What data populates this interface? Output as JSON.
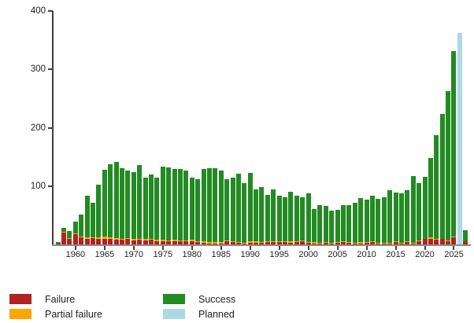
{
  "chart_data": {
    "type": "bar",
    "stacked": true,
    "title": "",
    "xlabel": "",
    "ylabel": "",
    "ylim": [
      0,
      400
    ],
    "grid": false,
    "legend_position": "bottom",
    "yticks": [
      "100",
      "200",
      "300",
      "400"
    ],
    "xticks": [
      "1960",
      "1965",
      "1970",
      "1975",
      "1980",
      "1985",
      "1990",
      "1995",
      "2000",
      "2005",
      "2010",
      "2015",
      "2020",
      "2025"
    ],
    "colors": {
      "failure": "#b22222",
      "partial": "#ffa500",
      "success": "#228b22",
      "planned": "#add8e6",
      "axis": "#404040",
      "baseline": "#8a8a8a"
    },
    "legend": [
      {
        "key": "failure",
        "label": "Failure",
        "color": "#b22222"
      },
      {
        "key": "partial",
        "label": "Partial failure",
        "color": "#ffa500"
      },
      {
        "key": "success",
        "label": "Success",
        "color": "#228b22"
      },
      {
        "key": "planned",
        "label": "Planned",
        "color": "#add8e6"
      }
    ],
    "series_order": [
      "failure",
      "partial",
      "success",
      "planned"
    ],
    "years": [
      {
        "year": "1957",
        "failure": 1,
        "partial": 1,
        "success": 2,
        "planned": 0
      },
      {
        "year": "1958",
        "failure": 20,
        "partial": 1,
        "success": 7,
        "planned": 0
      },
      {
        "year": "1959",
        "failure": 9,
        "partial": 2,
        "success": 12,
        "planned": 0
      },
      {
        "year": "1960",
        "failure": 17,
        "partial": 2,
        "success": 20,
        "planned": 0
      },
      {
        "year": "1961",
        "failure": 12,
        "partial": 2,
        "success": 37,
        "planned": 0
      },
      {
        "year": "1962",
        "failure": 10,
        "partial": 2,
        "success": 72,
        "planned": 0
      },
      {
        "year": "1963",
        "failure": 11,
        "partial": 1,
        "success": 60,
        "planned": 0
      },
      {
        "year": "1964",
        "failure": 10,
        "partial": 2,
        "success": 91,
        "planned": 0
      },
      {
        "year": "1965",
        "failure": 10,
        "partial": 4,
        "success": 114,
        "planned": 0
      },
      {
        "year": "1966",
        "failure": 9,
        "partial": 3,
        "success": 126,
        "planned": 0
      },
      {
        "year": "1967",
        "failure": 8,
        "partial": 3,
        "success": 130,
        "planned": 0
      },
      {
        "year": "1968",
        "failure": 8,
        "partial": 2,
        "success": 121,
        "planned": 0
      },
      {
        "year": "1969",
        "failure": 9,
        "partial": 2,
        "success": 116,
        "planned": 0
      },
      {
        "year": "1970",
        "failure": 7,
        "partial": 2,
        "success": 115,
        "planned": 0
      },
      {
        "year": "1971",
        "failure": 8,
        "partial": 2,
        "success": 126,
        "planned": 0
      },
      {
        "year": "1972",
        "failure": 7,
        "partial": 2,
        "success": 105,
        "planned": 0
      },
      {
        "year": "1973",
        "failure": 8,
        "partial": 2,
        "success": 110,
        "planned": 0
      },
      {
        "year": "1974",
        "failure": 6,
        "partial": 2,
        "success": 106,
        "planned": 0
      },
      {
        "year": "1975",
        "failure": 6,
        "partial": 2,
        "success": 125,
        "planned": 0
      },
      {
        "year": "1976",
        "failure": 5,
        "partial": 2,
        "success": 125,
        "planned": 0
      },
      {
        "year": "1977",
        "failure": 6,
        "partial": 2,
        "success": 122,
        "planned": 0
      },
      {
        "year": "1978",
        "failure": 5,
        "partial": 2,
        "success": 123,
        "planned": 0
      },
      {
        "year": "1979",
        "failure": 5,
        "partial": 2,
        "success": 120,
        "planned": 0
      },
      {
        "year": "1980",
        "failure": 6,
        "partial": 2,
        "success": 106,
        "planned": 0
      },
      {
        "year": "1981",
        "failure": 4,
        "partial": 2,
        "success": 106,
        "planned": 0
      },
      {
        "year": "1982",
        "failure": 3,
        "partial": 2,
        "success": 125,
        "planned": 0
      },
      {
        "year": "1983",
        "failure": 2,
        "partial": 2,
        "success": 127,
        "planned": 0
      },
      {
        "year": "1984",
        "failure": 2,
        "partial": 2,
        "success": 127,
        "planned": 0
      },
      {
        "year": "1985",
        "failure": 2,
        "partial": 2,
        "success": 123,
        "planned": 0
      },
      {
        "year": "1986",
        "failure": 5,
        "partial": 2,
        "success": 105,
        "planned": 0
      },
      {
        "year": "1987",
        "failure": 4,
        "partial": 1,
        "success": 110,
        "planned": 0
      },
      {
        "year": "1988",
        "failure": 3,
        "partial": 1,
        "success": 118,
        "planned": 0
      },
      {
        "year": "1989",
        "failure": 2,
        "partial": 1,
        "success": 102,
        "planned": 0
      },
      {
        "year": "1990",
        "failure": 3,
        "partial": 2,
        "success": 118,
        "planned": 0
      },
      {
        "year": "1991",
        "failure": 3,
        "partial": 2,
        "success": 89,
        "planned": 0
      },
      {
        "year": "1992",
        "failure": 3,
        "partial": 1,
        "success": 95,
        "planned": 0
      },
      {
        "year": "1993",
        "failure": 4,
        "partial": 1,
        "success": 80,
        "planned": 0
      },
      {
        "year": "1994",
        "failure": 4,
        "partial": 2,
        "success": 89,
        "planned": 0
      },
      {
        "year": "1995",
        "failure": 4,
        "partial": 2,
        "success": 77,
        "planned": 0
      },
      {
        "year": "1996",
        "failure": 4,
        "partial": 1,
        "success": 76,
        "planned": 0
      },
      {
        "year": "1997",
        "failure": 3,
        "partial": 2,
        "success": 86,
        "planned": 0
      },
      {
        "year": "1998",
        "failure": 4,
        "partial": 1,
        "success": 79,
        "planned": 0
      },
      {
        "year": "1999",
        "failure": 5,
        "partial": 2,
        "success": 74,
        "planned": 0
      },
      {
        "year": "2000",
        "failure": 3,
        "partial": 1,
        "success": 83,
        "planned": 0
      },
      {
        "year": "2001",
        "failure": 2,
        "partial": 2,
        "success": 57,
        "planned": 0
      },
      {
        "year": "2002",
        "failure": 2,
        "partial": 1,
        "success": 64,
        "planned": 0
      },
      {
        "year": "2003",
        "failure": 3,
        "partial": 1,
        "success": 62,
        "planned": 0
      },
      {
        "year": "2004",
        "failure": 2,
        "partial": 1,
        "success": 55,
        "planned": 0
      },
      {
        "year": "2005",
        "failure": 3,
        "partial": 1,
        "success": 55,
        "planned": 0
      },
      {
        "year": "2006",
        "failure": 4,
        "partial": 1,
        "success": 62,
        "planned": 0
      },
      {
        "year": "2007",
        "failure": 3,
        "partial": 1,
        "success": 64,
        "planned": 0
      },
      {
        "year": "2008",
        "failure": 2,
        "partial": 1,
        "success": 69,
        "planned": 0
      },
      {
        "year": "2009",
        "failure": 2,
        "partial": 2,
        "success": 75,
        "planned": 0
      },
      {
        "year": "2010",
        "failure": 3,
        "partial": 1,
        "success": 73,
        "planned": 0
      },
      {
        "year": "2011",
        "failure": 4,
        "partial": 1,
        "success": 79,
        "planned": 0
      },
      {
        "year": "2012",
        "failure": 2,
        "partial": 1,
        "success": 75,
        "planned": 0
      },
      {
        "year": "2013",
        "failure": 2,
        "partial": 1,
        "success": 78,
        "planned": 0
      },
      {
        "year": "2014",
        "failure": 2,
        "partial": 1,
        "success": 90,
        "planned": 0
      },
      {
        "year": "2015",
        "failure": 4,
        "partial": 1,
        "success": 84,
        "planned": 0
      },
      {
        "year": "2016",
        "failure": 2,
        "partial": 1,
        "success": 84,
        "planned": 0
      },
      {
        "year": "2017",
        "failure": 4,
        "partial": 1,
        "success": 88,
        "planned": 0
      },
      {
        "year": "2018",
        "failure": 2,
        "partial": 1,
        "success": 114,
        "planned": 0
      },
      {
        "year": "2019",
        "failure": 5,
        "partial": 2,
        "success": 98,
        "planned": 0
      },
      {
        "year": "2020",
        "failure": 9,
        "partial": 1,
        "success": 106,
        "planned": 0
      },
      {
        "year": "2021",
        "failure": 10,
        "partial": 2,
        "success": 136,
        "planned": 0
      },
      {
        "year": "2022",
        "failure": 8,
        "partial": 1,
        "success": 179,
        "planned": 0
      },
      {
        "year": "2023",
        "failure": 9,
        "partial": 1,
        "success": 214,
        "planned": 0
      },
      {
        "year": "2024",
        "failure": 6,
        "partial": 1,
        "success": 256,
        "planned": 0
      },
      {
        "year": "2025",
        "failure": 12,
        "partial": 1,
        "success": 319,
        "planned": 0
      },
      {
        "year": "2026",
        "failure": 0,
        "partial": 0,
        "success": 0,
        "planned": 362
      },
      {
        "year": "2026 (to date)",
        "failure": 5,
        "partial": 0,
        "success": 19,
        "planned": 0
      }
    ]
  }
}
